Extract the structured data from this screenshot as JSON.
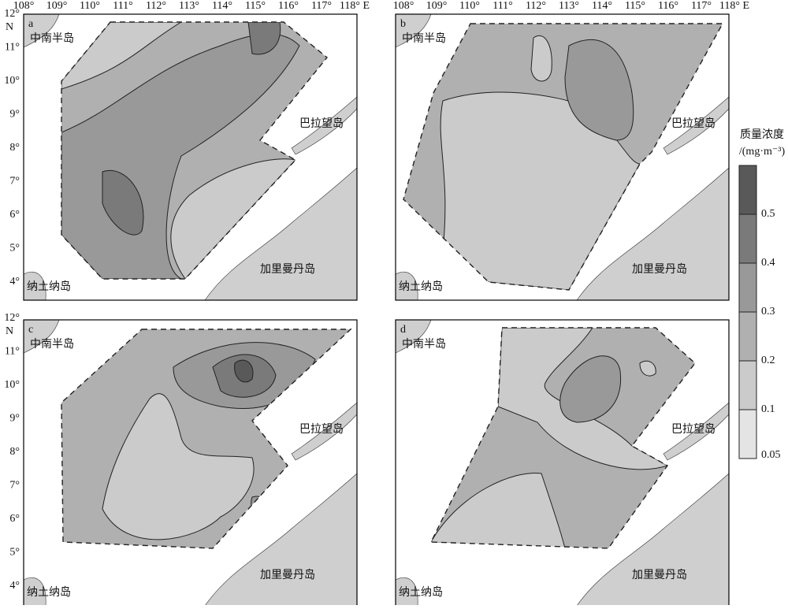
{
  "lon_labels": [
    "108°",
    "109°",
    "110°",
    "111°",
    "112°",
    "113°",
    "114°",
    "115°",
    "116°",
    "117°",
    "118° E"
  ],
  "lat_labels": [
    "12°",
    "11°",
    "10°",
    "9°",
    "8°",
    "7°",
    "6°",
    "5°",
    "4°"
  ],
  "lat_unit": "N",
  "panels": [
    {
      "label": "a",
      "places": [
        "中南半岛",
        "巴拉望岛",
        "加里曼丹岛",
        "纳土纳岛"
      ]
    },
    {
      "label": "b",
      "places": [
        "中南半岛",
        "巴拉望岛",
        "加里曼丹岛",
        "纳土纳岛"
      ]
    },
    {
      "label": "c",
      "places": [
        "中南半岛",
        "巴拉望岛",
        "加里曼丹岛",
        "纳土纳岛"
      ]
    },
    {
      "label": "d",
      "places": [
        "中南半岛",
        "巴拉望岛",
        "加里曼丹岛",
        "纳土纳岛"
      ]
    }
  ],
  "legend": {
    "title": "质量浓度",
    "unit": "/(mg·m⁻³)",
    "ticks": [
      0.5,
      0.4,
      0.3,
      0.2,
      0.1,
      0.05
    ],
    "colors": [
      "#595959",
      "#7a7a7a",
      "#999999",
      "#b0b0b0",
      "#cbcbcb",
      "#e4e4e4"
    ]
  }
}
